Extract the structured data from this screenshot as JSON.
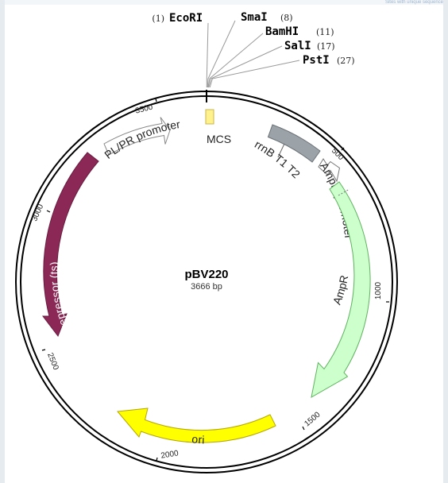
{
  "plasmid": {
    "name": "pBV220",
    "size_bp": 3666,
    "size_label": "3666 bp"
  },
  "corner_text": "Sites with unique sequence",
  "restriction_sites": [
    {
      "name": "EcoRI",
      "position": 1,
      "position_label": "(1)"
    },
    {
      "name": "SmaI",
      "position": 8,
      "position_label": "(8)"
    },
    {
      "name": "BamHI",
      "position": 11,
      "position_label": "(11)"
    },
    {
      "name": "SalI",
      "position": 17,
      "position_label": "(17)"
    },
    {
      "name": "PstI",
      "position": 27,
      "position_label": "(27)"
    }
  ],
  "ticks": [
    {
      "label": "500"
    },
    {
      "label": "1000"
    },
    {
      "label": "1500"
    },
    {
      "label": "2000"
    },
    {
      "label": "2500"
    },
    {
      "label": "3000"
    },
    {
      "label": "3500"
    }
  ],
  "features": {
    "mcs": {
      "label": "MCS",
      "color": "#fff18c"
    },
    "rrnb": {
      "label": "rrnB T1 T2",
      "color": "#9ba3a8"
    },
    "ampr_promoter": {
      "label": "AmpR promoter",
      "color": "#ffffff"
    },
    "ampr": {
      "label": "AmpR",
      "color": "#ccffcc"
    },
    "ori": {
      "label": "ori",
      "color": "#ffff00"
    },
    "repressor": {
      "label": "λ repressor (ts)",
      "color": "#8b2856"
    },
    "plpr": {
      "label": "PL/PR promoter",
      "color": "#ffffff"
    }
  }
}
